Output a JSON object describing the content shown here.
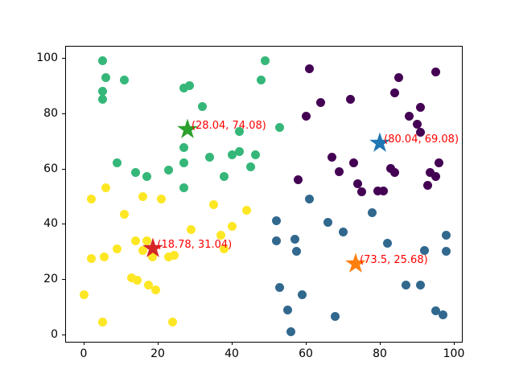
{
  "figure": {
    "background": "#ffffff"
  },
  "chart_data": {
    "type": "scatter",
    "title": "",
    "xlabel": "",
    "ylabel": "",
    "xlim": [
      -4.8,
      102.8
    ],
    "ylim": [
      -3.3,
      104.1
    ],
    "x_ticks": [
      "0",
      "20",
      "40",
      "60",
      "80",
      "100"
    ],
    "x_tick_values": [
      0,
      20,
      40,
      60,
      80,
      100
    ],
    "y_ticks": [
      "0",
      "20",
      "40",
      "60",
      "80",
      "100"
    ],
    "y_tick_values": [
      0,
      20,
      40,
      60,
      80,
      100
    ],
    "grid": false,
    "legend": false,
    "annotation_color": "#ff0000",
    "series": [
      {
        "name": "cluster-yellow",
        "color": "#FDE725",
        "points": [
          [
            2,
            49
          ],
          [
            6,
            53
          ],
          [
            16,
            50
          ],
          [
            21,
            49
          ],
          [
            11,
            43.5
          ],
          [
            29,
            38
          ],
          [
            35,
            47
          ],
          [
            44,
            45
          ],
          [
            40,
            39
          ],
          [
            37,
            36
          ],
          [
            38,
            31
          ],
          [
            14,
            34
          ],
          [
            17,
            34
          ],
          [
            16,
            30.5
          ],
          [
            9,
            31
          ],
          [
            5.5,
            28
          ],
          [
            2,
            27.5
          ],
          [
            18.5,
            28
          ],
          [
            23,
            28
          ],
          [
            24.5,
            28.5
          ],
          [
            13,
            20.5
          ],
          [
            14.5,
            19.5
          ],
          [
            17.5,
            18
          ],
          [
            19.5,
            16
          ],
          [
            0,
            14.5
          ],
          [
            5,
            4.5
          ],
          [
            24,
            4.5
          ]
        ]
      },
      {
        "name": "cluster-green",
        "color": "#35B779",
        "points": [
          [
            5,
            99
          ],
          [
            6,
            93
          ],
          [
            11,
            92
          ],
          [
            5,
            88
          ],
          [
            5,
            85
          ],
          [
            27,
            89
          ],
          [
            28.5,
            90
          ],
          [
            32,
            82.5
          ],
          [
            49,
            99
          ],
          [
            48,
            92
          ],
          [
            53,
            75
          ],
          [
            42,
            73.5
          ],
          [
            27,
            67.5
          ],
          [
            34,
            64
          ],
          [
            40,
            65
          ],
          [
            42,
            66
          ],
          [
            46.5,
            65
          ],
          [
            45,
            60.5
          ],
          [
            38,
            57
          ],
          [
            9,
            62
          ],
          [
            27,
            62
          ],
          [
            14,
            58.5
          ],
          [
            17,
            57
          ],
          [
            23,
            59.5
          ],
          [
            27,
            53
          ]
        ]
      },
      {
        "name": "cluster-purple",
        "color": "#440154",
        "points": [
          [
            61,
            96
          ],
          [
            64,
            84
          ],
          [
            60,
            79
          ],
          [
            58,
            56
          ],
          [
            95,
            95
          ],
          [
            85,
            93
          ],
          [
            84,
            87.5
          ],
          [
            72,
            85
          ],
          [
            91,
            82
          ],
          [
            88,
            79
          ],
          [
            90,
            76
          ],
          [
            91,
            73
          ],
          [
            67,
            64
          ],
          [
            73,
            62
          ],
          [
            69,
            59
          ],
          [
            83,
            60
          ],
          [
            84,
            58.5
          ],
          [
            96,
            62
          ],
          [
            93.5,
            58.5
          ],
          [
            95,
            57
          ],
          [
            74,
            54.5
          ],
          [
            75,
            51.5
          ],
          [
            79.5,
            52
          ],
          [
            81,
            52
          ],
          [
            93,
            54
          ]
        ]
      },
      {
        "name": "cluster-blue",
        "color": "#31688E",
        "points": [
          [
            61,
            49
          ],
          [
            52,
            41
          ],
          [
            66,
            40.5
          ],
          [
            70,
            37
          ],
          [
            78,
            44
          ],
          [
            52,
            34
          ],
          [
            57,
            34.5
          ],
          [
            57.5,
            30
          ],
          [
            53,
            17
          ],
          [
            59,
            14.5
          ],
          [
            55,
            9
          ],
          [
            56,
            1
          ],
          [
            68,
            6.5
          ],
          [
            82,
            33
          ],
          [
            92,
            30.5
          ],
          [
            98,
            30
          ],
          [
            87,
            18
          ],
          [
            91,
            18
          ],
          [
            95,
            8.5
          ],
          [
            97,
            7
          ],
          [
            98,
            36
          ]
        ]
      }
    ],
    "centroids": [
      {
        "name": "centroid-green",
        "x": 28.04,
        "y": 74.08,
        "color": "#2CA02C",
        "label": "(28.04, 74.08)"
      },
      {
        "name": "centroid-blue",
        "x": 80.04,
        "y": 69.08,
        "color": "#1F77B4",
        "label": "(80.04, 69.08)"
      },
      {
        "name": "centroid-red",
        "x": 18.78,
        "y": 31.04,
        "color": "#D62728",
        "label": "(18.78, 31.04)"
      },
      {
        "name": "centroid-orange",
        "x": 73.5,
        "y": 25.68,
        "color": "#FF7F0E",
        "label": "(73.5, 25.68)"
      }
    ]
  }
}
